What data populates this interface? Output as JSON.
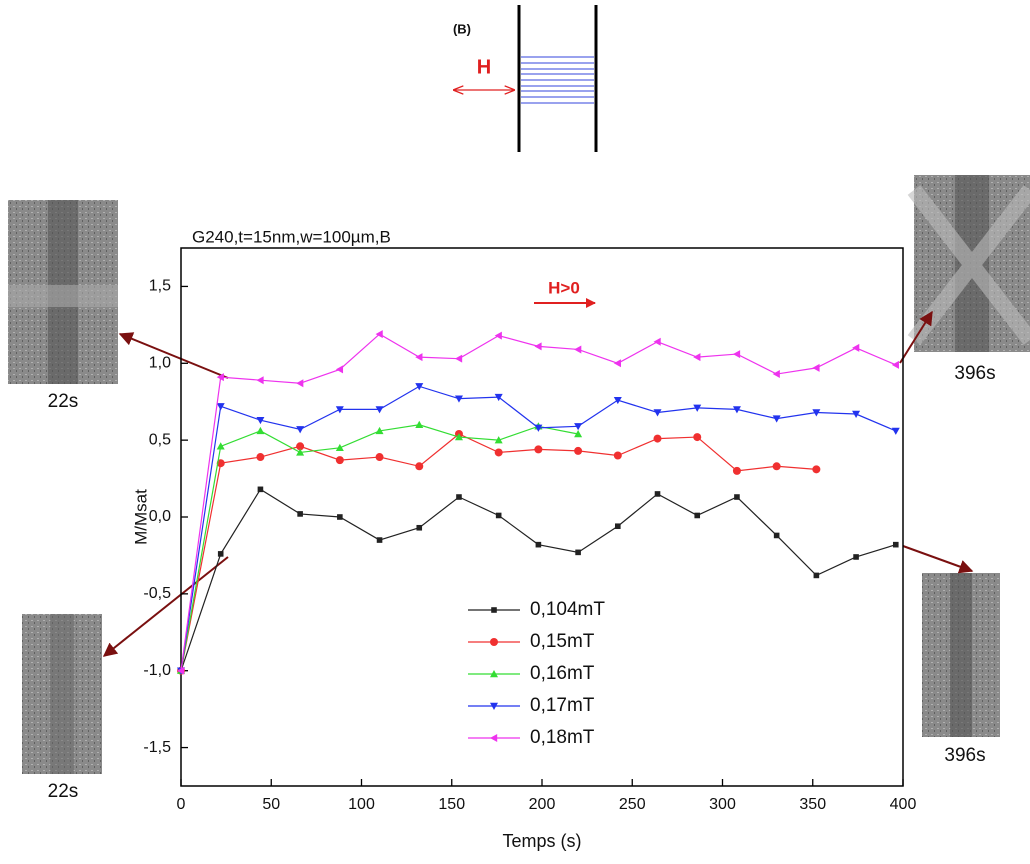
{
  "chart_data": {
    "type": "line",
    "panel_label": "(B)",
    "field_label": "H",
    "title": "G240,t=15nm,w=100µm,B",
    "annotation": "H>0",
    "image_labels": [
      "22s",
      "22s",
      "396s",
      "396s"
    ],
    "x_label": "Temps (s)",
    "y_label": "M/Msat",
    "xlim": [
      0,
      400
    ],
    "xticks": [
      0,
      50,
      100,
      150,
      200,
      250,
      300,
      350,
      400
    ],
    "ylim": [
      -1.75,
      1.75
    ],
    "yticks": [
      {
        "value": -1.5,
        "label": "-1,5"
      },
      {
        "value": -1.0,
        "label": "-1,0"
      },
      {
        "value": -0.5,
        "label": "-0,5"
      },
      {
        "value": 0,
        "label": "0,0"
      },
      {
        "value": 0.5,
        "label": "0,5"
      },
      {
        "value": 1.0,
        "label": "1,0"
      },
      {
        "value": 1.5,
        "label": "1,5"
      }
    ],
    "series": [
      {
        "name": "0,104mT",
        "color": "#222222",
        "marker": "square",
        "x": [
          0,
          22,
          44,
          66,
          88,
          110,
          132,
          154,
          176,
          198,
          220,
          242,
          264,
          286,
          308,
          330,
          352,
          374,
          396
        ],
        "values": [
          -1.0,
          -0.24,
          0.18,
          0.02,
          0.0,
          -0.15,
          -0.07,
          0.13,
          0.01,
          -0.18,
          -0.23,
          -0.06,
          0.15,
          0.01,
          0.13,
          -0.12,
          -0.38,
          -0.26,
          -0.18
        ]
      },
      {
        "name": "0,15mT",
        "color": "#f03030",
        "marker": "circle",
        "x": [
          0,
          22,
          44,
          66,
          88,
          110,
          132,
          154,
          176,
          198,
          220,
          242,
          264,
          286,
          308,
          330,
          352
        ],
        "values": [
          -1.0,
          0.35,
          0.39,
          0.46,
          0.37,
          0.39,
          0.33,
          0.54,
          0.42,
          0.44,
          0.43,
          0.4,
          0.51,
          0.52,
          0.3,
          0.33,
          0.31
        ]
      },
      {
        "name": "0,16mT",
        "color": "#33dd33",
        "marker": "triangle-up",
        "x": [
          0,
          22,
          44,
          66,
          88,
          110,
          132,
          154,
          176,
          198,
          220
        ],
        "values": [
          -1.0,
          0.46,
          0.56,
          0.42,
          0.45,
          0.56,
          0.6,
          0.52,
          0.5,
          0.59,
          0.54
        ]
      },
      {
        "name": "0,17mT",
        "color": "#2233ee",
        "marker": "triangle-down",
        "x": [
          0,
          22,
          44,
          66,
          88,
          110,
          132,
          154,
          176,
          198,
          220,
          242,
          264,
          286,
          308,
          330,
          352,
          374,
          396
        ],
        "values": [
          -1.0,
          0.72,
          0.63,
          0.57,
          0.7,
          0.7,
          0.85,
          0.77,
          0.78,
          0.58,
          0.59,
          0.76,
          0.68,
          0.71,
          0.7,
          0.64,
          0.68,
          0.67,
          0.56
        ]
      },
      {
        "name": "0,18mT",
        "color": "#ee33ee",
        "marker": "triangle-left",
        "x": [
          0,
          22,
          44,
          66,
          88,
          110,
          132,
          154,
          176,
          198,
          220,
          242,
          264,
          286,
          308,
          330,
          352,
          374,
          396
        ],
        "values": [
          -1.0,
          0.91,
          0.89,
          0.87,
          0.96,
          1.19,
          1.04,
          1.03,
          1.18,
          1.11,
          1.09,
          1.0,
          1.14,
          1.04,
          1.06,
          0.93,
          0.97,
          1.1,
          0.99
        ]
      }
    ]
  }
}
